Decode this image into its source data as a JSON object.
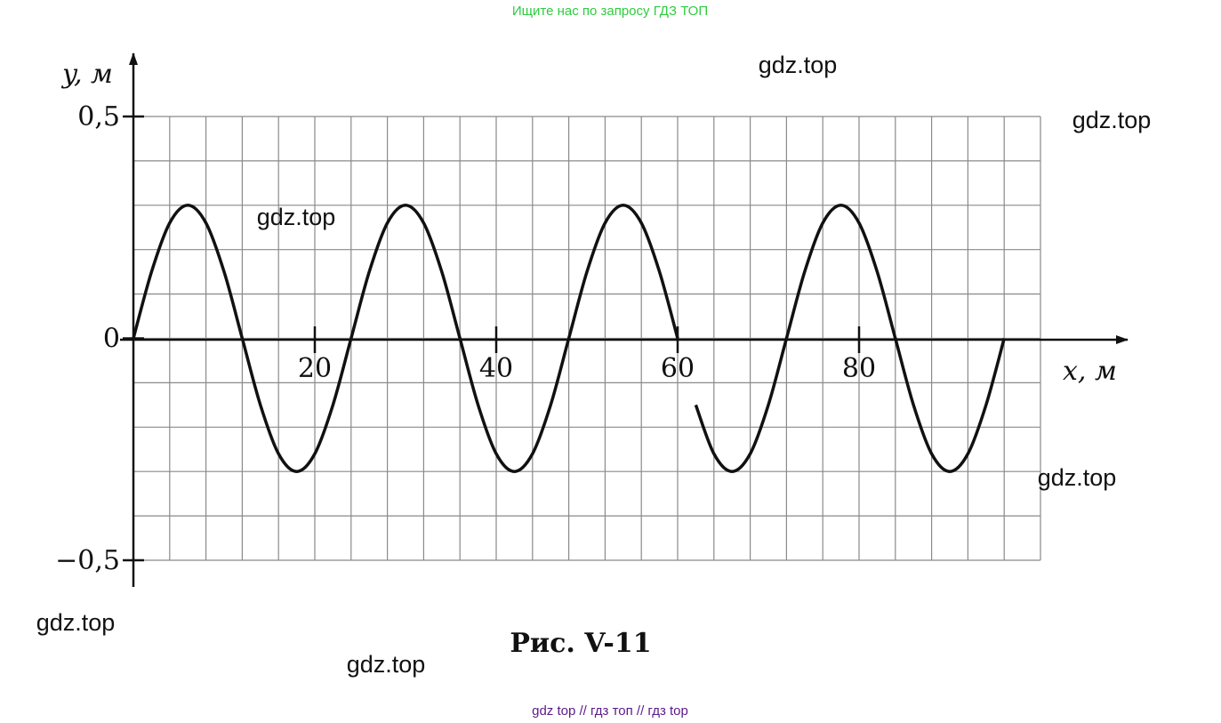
{
  "header": "Ищите нас по запросу ГДЗ ТОП",
  "footer": "gdz top  //  гдз топ  //  гдз top",
  "watermarks": [
    "gdz.top",
    "gdz.top",
    "gdz.top",
    "gdz.top",
    "gdz.top",
    "gdz.top"
  ],
  "chart_data": {
    "type": "line",
    "title": "Рис. V-11",
    "x_label": "x, м",
    "y_label": "y, м",
    "x": [
      0,
      2,
      4,
      6,
      8,
      10,
      12,
      14,
      16,
      18,
      20,
      22,
      24,
      26,
      28,
      30,
      32,
      34,
      36,
      38,
      40,
      42,
      44,
      46,
      48,
      50,
      52,
      54,
      56,
      58,
      60,
      61,
      62,
      64,
      66,
      68,
      70,
      72,
      74,
      76,
      78,
      80,
      82,
      84,
      86,
      88,
      90,
      92,
      94,
      96
    ],
    "values": [
      0,
      0.15,
      0.26,
      0.3,
      0.26,
      0.15,
      0,
      -0.15,
      -0.26,
      -0.3,
      -0.26,
      -0.15,
      0,
      0.15,
      0.26,
      0.3,
      0.26,
      0.15,
      0,
      -0.15,
      -0.26,
      -0.3,
      -0.26,
      -0.15,
      0,
      0.15,
      0.26,
      0.3,
      0.26,
      0.15,
      0,
      null,
      -0.15,
      -0.26,
      -0.3,
      -0.26,
      -0.15,
      0,
      0.15,
      0.26,
      0.3,
      0.26,
      0.15,
      0,
      -0.15,
      -0.26,
      -0.3,
      -0.26,
      -0.15,
      0
    ],
    "color": "#111111",
    "xlim": [
      0,
      100
    ],
    "ylim": [
      -0.5,
      0.5
    ],
    "xticks": [
      20,
      40,
      60,
      80
    ],
    "yticks": [
      {
        "value": 0.5,
        "label": "0,5"
      },
      0,
      {
        "value": -0.5,
        "label": "−0,5"
      }
    ],
    "grid": true,
    "xgrid": [
      0,
      4,
      8,
      12,
      16,
      20,
      24,
      28,
      32,
      36,
      40,
      44,
      48,
      52,
      56,
      60,
      64,
      68,
      72,
      76,
      80,
      84,
      88,
      92,
      96,
      100
    ],
    "ygrid": [
      -0.5,
      -0.4,
      -0.3,
      -0.2,
      -0.1,
      0,
      0.1,
      0.2,
      0.3,
      0.4,
      0.5
    ]
  }
}
